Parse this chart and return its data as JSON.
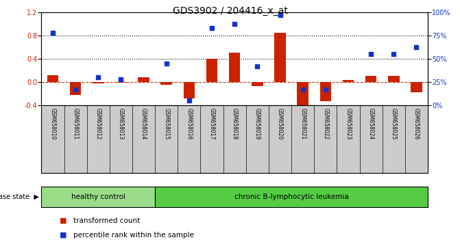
{
  "title": "GDS3902 / 204416_x_at",
  "samples": [
    "GSM658010",
    "GSM658011",
    "GSM658012",
    "GSM658013",
    "GSM658014",
    "GSM658015",
    "GSM658016",
    "GSM658017",
    "GSM658018",
    "GSM658019",
    "GSM658020",
    "GSM658021",
    "GSM658022",
    "GSM658023",
    "GSM658024",
    "GSM658025",
    "GSM658026"
  ],
  "transformed_count": [
    0.12,
    -0.22,
    -0.02,
    -0.01,
    0.08,
    -0.05,
    -0.28,
    0.4,
    0.5,
    -0.07,
    0.85,
    -0.42,
    -0.33,
    0.03,
    0.1,
    0.1,
    -0.18
  ],
  "percentile_rank": [
    78,
    17,
    30,
    28,
    null,
    45,
    5,
    83,
    87,
    42,
    97,
    17,
    17,
    null,
    55,
    55,
    62
  ],
  "healthy_control_count": 5,
  "group1_label": "healthy control",
  "group2_label": "chronic B-lymphocytic leukemia",
  "disease_state_label": "disease state",
  "legend_red": "transformed count",
  "legend_blue": "percentile rank within the sample",
  "ylim_left": [
    -0.4,
    1.2
  ],
  "ylim_right": [
    0,
    100
  ],
  "yticks_left": [
    -0.4,
    0.0,
    0.4,
    0.8,
    1.2
  ],
  "yticks_right": [
    0,
    25,
    50,
    75,
    100
  ],
  "hline_y": [
    0.4,
    0.8
  ],
  "bar_color": "#cc2200",
  "scatter_color": "#1133cc",
  "bg_color": "#ffffff",
  "plot_bg": "#ffffff",
  "healthy_bg": "#99dd88",
  "leukemia_bg": "#55cc44",
  "label_area_bg": "#cccccc",
  "zero_line_color": "#cc3300",
  "dotted_line_color": "#000000",
  "title_fontsize": 10,
  "tick_fontsize": 7,
  "bar_width": 0.5
}
